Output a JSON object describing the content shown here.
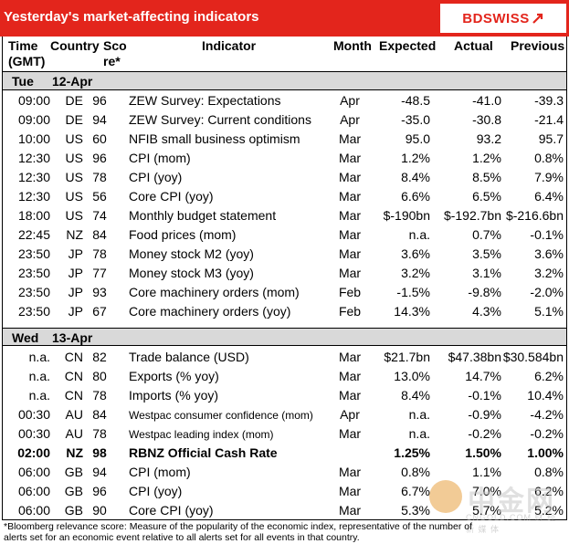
{
  "header": {
    "title": "Yesterday's market-affecting indicators",
    "logo": "BDSWISS",
    "accent_color": "#e3251c"
  },
  "columns": {
    "time": "Time",
    "time_sub": "(GMT)",
    "country": "Country",
    "score": "Sco",
    "score_sub": "re*",
    "indicator": "Indicator",
    "month": "Month",
    "expected": "Expected",
    "actual": "Actual",
    "previous": "Previous"
  },
  "days": [
    {
      "day": "Tue",
      "date": "12-Apr"
    },
    {
      "day": "Wed",
      "date": "13-Apr"
    }
  ],
  "rows_day1": [
    {
      "time": "09:00",
      "country": "DE",
      "score": "96",
      "indicator": "ZEW Survey: Expectations",
      "month": "Apr",
      "expected": "-48.5",
      "actual": "-41.0",
      "previous": "-39.3"
    },
    {
      "time": "09:00",
      "country": "DE",
      "score": "94",
      "indicator": "ZEW Survey: Current conditions",
      "month": "Apr",
      "expected": "-35.0",
      "actual": "-30.8",
      "previous": "-21.4"
    },
    {
      "time": "10:00",
      "country": "US",
      "score": "60",
      "indicator": "NFIB small business optimism",
      "month": "Mar",
      "expected": "95.0",
      "actual": "93.2",
      "previous": "95.7"
    },
    {
      "time": "12:30",
      "country": "US",
      "score": "96",
      "indicator": "CPI (mom)",
      "month": "Mar",
      "expected": "1.2%",
      "actual": "1.2%",
      "previous": "0.8%"
    },
    {
      "time": "12:30",
      "country": "US",
      "score": "78",
      "indicator": "CPI (yoy)",
      "month": "Mar",
      "expected": "8.4%",
      "actual": "8.5%",
      "previous": "7.9%"
    },
    {
      "time": "12:30",
      "country": "US",
      "score": "56",
      "indicator": "Core CPI (yoy)",
      "month": "Mar",
      "expected": "6.6%",
      "actual": "6.5%",
      "previous": "6.4%"
    },
    {
      "time": "18:00",
      "country": "US",
      "score": "74",
      "indicator": "Monthly budget statement",
      "month": "Mar",
      "expected": "$-190bn",
      "actual": "$-192.7bn",
      "previous": "$-216.6bn"
    },
    {
      "time": "22:45",
      "country": "NZ",
      "score": "84",
      "indicator": "Food prices (mom)",
      "month": "Mar",
      "expected": "n.a.",
      "actual": "0.7%",
      "previous": "-0.1%"
    },
    {
      "time": "23:50",
      "country": "JP",
      "score": "78",
      "indicator": "Money stock M2 (yoy)",
      "month": "Mar",
      "expected": "3.6%",
      "actual": "3.5%",
      "previous": "3.6%"
    },
    {
      "time": "23:50",
      "country": "JP",
      "score": "77",
      "indicator": "Money stock M3 (yoy)",
      "month": "Mar",
      "expected": "3.2%",
      "actual": "3.1%",
      "previous": "3.2%"
    },
    {
      "time": "23:50",
      "country": "JP",
      "score": "93",
      "indicator": "Core machinery orders (mom)",
      "month": "Feb",
      "expected": "-1.5%",
      "actual": "-9.8%",
      "previous": "-2.0%"
    },
    {
      "time": "23:50",
      "country": "JP",
      "score": "67",
      "indicator": "Core machinery orders (yoy)",
      "month": "Feb",
      "expected": "14.3%",
      "actual": "4.3%",
      "previous": "5.1%"
    }
  ],
  "rows_day2": [
    {
      "time": "n.a.",
      "country": "CN",
      "score": "82",
      "indicator": "Trade balance (USD)",
      "month": "Mar",
      "expected": "$21.7bn",
      "actual": "$47.38bn",
      "previous": "$30.584bn"
    },
    {
      "time": "n.a.",
      "country": "CN",
      "score": "80",
      "indicator": "Exports (% yoy)",
      "month": "Mar",
      "expected": "13.0%",
      "actual": "14.7%",
      "previous": "6.2%"
    },
    {
      "time": "n.a.",
      "country": "CN",
      "score": "78",
      "indicator": "Imports (% yoy)",
      "month": "Mar",
      "expected": "8.4%",
      "actual": "-0.1%",
      "previous": "10.4%"
    },
    {
      "time": "00:30",
      "country": "AU",
      "score": "84",
      "indicator": "Westpac consumer confidence (mom)",
      "month": "Apr",
      "expected": "n.a.",
      "actual": "-0.9%",
      "previous": "-4.2%",
      "small": true
    },
    {
      "time": "00:30",
      "country": "AU",
      "score": "78",
      "indicator": "Westpac leading index (mom)",
      "month": "Mar",
      "expected": "n.a.",
      "actual": "-0.2%",
      "previous": "-0.2%",
      "small": true
    },
    {
      "time": "02:00",
      "country": "NZ",
      "score": "98",
      "indicator": "RBNZ Official Cash Rate",
      "month": "",
      "expected": "1.25%",
      "actual": "1.50%",
      "previous": "1.00%",
      "bold": true
    },
    {
      "time": "06:00",
      "country": "GB",
      "score": "94",
      "indicator": "CPI (mom)",
      "month": "Mar",
      "expected": "0.8%",
      "actual": "1.1%",
      "previous": "0.8%"
    },
    {
      "time": "06:00",
      "country": "GB",
      "score": "96",
      "indicator": "CPI (yoy)",
      "month": "Mar",
      "expected": "6.7%",
      "actual": "7.0%",
      "previous": "6.2%"
    },
    {
      "time": "06:00",
      "country": "GB",
      "score": "90",
      "indicator": "Core CPI (yoy)",
      "month": "Mar",
      "expected": "5.3%",
      "actual": "5.7%",
      "previous": "5.2%"
    }
  ],
  "footnote": {
    "line1": "*Bloomberg relevance score:  Measure of the popularity of the economic index, representative of the number of",
    "line2": "alerts set for an economic event relative to all alerts set for all events in that country."
  },
  "watermark": {
    "text": "中金网",
    "sub": "CNGOLD.COM  财 经 新 媒 体"
  }
}
